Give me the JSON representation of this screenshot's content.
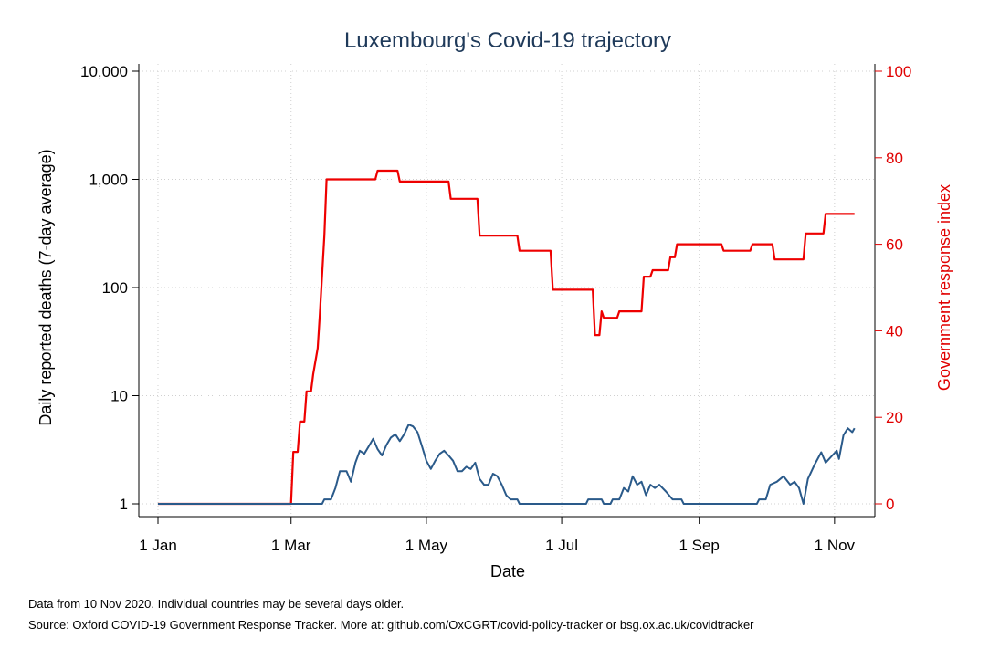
{
  "chart_data": {
    "type": "line",
    "title": "Luxembourg's Covid-19 trajectory",
    "xlabel": "Date",
    "ylabel_left": "Daily reported deaths (7-day average)",
    "ylabel_right": "Government response index",
    "x_ticks": [
      "1 Jan",
      "1 Mar",
      "1 May",
      "1 Jul",
      "1 Sep",
      "1 Nov"
    ],
    "y_left_ticks": [
      "1",
      "10",
      "100",
      "1,000",
      "10,000"
    ],
    "y_left_scale": "log",
    "y_left_range": [
      1,
      10000
    ],
    "y_right_ticks": [
      "0",
      "20",
      "40",
      "60",
      "80",
      "100"
    ],
    "y_right_range": [
      0,
      100
    ],
    "grid": true,
    "colors": {
      "deaths": "#2a5a8a",
      "index": "#ee0000",
      "title": "#1f3a5a"
    },
    "series": [
      {
        "axis": "right",
        "points": [
          [
            "2020-01-01",
            0
          ],
          [
            "2020-03-01",
            0
          ],
          [
            "2020-03-02",
            12
          ],
          [
            "2020-03-04",
            12
          ],
          [
            "2020-03-05",
            19
          ],
          [
            "2020-03-07",
            19
          ],
          [
            "2020-03-08",
            26
          ],
          [
            "2020-03-10",
            26
          ],
          [
            "2020-03-11",
            30
          ],
          [
            "2020-03-13",
            36
          ],
          [
            "2020-03-14",
            44
          ],
          [
            "2020-03-16",
            62
          ],
          [
            "2020-03-17",
            75
          ],
          [
            "2020-04-08",
            75
          ],
          [
            "2020-04-09",
            77
          ],
          [
            "2020-04-18",
            77
          ],
          [
            "2020-04-19",
            74.5
          ],
          [
            "2020-05-11",
            74.5
          ],
          [
            "2020-05-12",
            70.5
          ],
          [
            "2020-05-24",
            70.5
          ],
          [
            "2020-05-25",
            62
          ],
          [
            "2020-06-11",
            62
          ],
          [
            "2020-06-12",
            58.5
          ],
          [
            "2020-06-26",
            58.5
          ],
          [
            "2020-06-27",
            49.5
          ],
          [
            "2020-07-15",
            49.5
          ],
          [
            "2020-07-16",
            39
          ],
          [
            "2020-07-18",
            39
          ],
          [
            "2020-07-19",
            44.5
          ],
          [
            "2020-07-20",
            43
          ],
          [
            "2020-07-26",
            43
          ],
          [
            "2020-07-27",
            44.5
          ],
          [
            "2020-08-06",
            44.5
          ],
          [
            "2020-08-07",
            52.5
          ],
          [
            "2020-08-10",
            52.5
          ],
          [
            "2020-08-11",
            54
          ],
          [
            "2020-08-18",
            54
          ],
          [
            "2020-08-19",
            57
          ],
          [
            "2020-08-21",
            57
          ],
          [
            "2020-08-22",
            60
          ],
          [
            "2020-09-11",
            60
          ],
          [
            "2020-09-12",
            58.5
          ],
          [
            "2020-09-24",
            58.5
          ],
          [
            "2020-09-25",
            60
          ],
          [
            "2020-10-04",
            60
          ],
          [
            "2020-10-05",
            56.5
          ],
          [
            "2020-10-18",
            56.5
          ],
          [
            "2020-10-19",
            62.5
          ],
          [
            "2020-10-27",
            62.5
          ],
          [
            "2020-10-28",
            67
          ],
          [
            "2020-11-10",
            67
          ]
        ]
      },
      {
        "axis": "left",
        "points": [
          [
            "2020-01-01",
            1
          ],
          [
            "2020-03-15",
            1
          ],
          [
            "2020-03-16",
            1.1
          ],
          [
            "2020-03-19",
            1.1
          ],
          [
            "2020-03-21",
            1.4
          ],
          [
            "2020-03-23",
            2
          ],
          [
            "2020-03-26",
            2
          ],
          [
            "2020-03-28",
            1.6
          ],
          [
            "2020-03-30",
            2.4
          ],
          [
            "2020-04-01",
            3.1
          ],
          [
            "2020-04-03",
            2.9
          ],
          [
            "2020-04-05",
            3.4
          ],
          [
            "2020-04-07",
            4
          ],
          [
            "2020-04-09",
            3.2
          ],
          [
            "2020-04-11",
            2.8
          ],
          [
            "2020-04-13",
            3.5
          ],
          [
            "2020-04-15",
            4.1
          ],
          [
            "2020-04-17",
            4.4
          ],
          [
            "2020-04-19",
            3.8
          ],
          [
            "2020-04-21",
            4.4
          ],
          [
            "2020-04-23",
            5.4
          ],
          [
            "2020-04-25",
            5.2
          ],
          [
            "2020-04-27",
            4.6
          ],
          [
            "2020-04-29",
            3.4
          ],
          [
            "2020-05-01",
            2.5
          ],
          [
            "2020-05-03",
            2.1
          ],
          [
            "2020-05-05",
            2.5
          ],
          [
            "2020-05-07",
            2.9
          ],
          [
            "2020-05-09",
            3.1
          ],
          [
            "2020-05-11",
            2.8
          ],
          [
            "2020-05-13",
            2.5
          ],
          [
            "2020-05-15",
            2
          ],
          [
            "2020-05-17",
            2
          ],
          [
            "2020-05-19",
            2.2
          ],
          [
            "2020-05-21",
            2.1
          ],
          [
            "2020-05-23",
            2.4
          ],
          [
            "2020-05-25",
            1.7
          ],
          [
            "2020-05-27",
            1.5
          ],
          [
            "2020-05-29",
            1.5
          ],
          [
            "2020-05-31",
            1.9
          ],
          [
            "2020-06-02",
            1.8
          ],
          [
            "2020-06-04",
            1.5
          ],
          [
            "2020-06-06",
            1.2
          ],
          [
            "2020-06-08",
            1.1
          ],
          [
            "2020-06-11",
            1.1
          ],
          [
            "2020-06-12",
            1
          ],
          [
            "2020-07-12",
            1
          ],
          [
            "2020-07-13",
            1.1
          ],
          [
            "2020-07-19",
            1.1
          ],
          [
            "2020-07-20",
            1
          ],
          [
            "2020-07-23",
            1
          ],
          [
            "2020-07-24",
            1.1
          ],
          [
            "2020-07-27",
            1.1
          ],
          [
            "2020-07-29",
            1.4
          ],
          [
            "2020-07-31",
            1.3
          ],
          [
            "2020-08-02",
            1.8
          ],
          [
            "2020-08-04",
            1.5
          ],
          [
            "2020-08-06",
            1.6
          ],
          [
            "2020-08-08",
            1.2
          ],
          [
            "2020-08-10",
            1.5
          ],
          [
            "2020-08-12",
            1.4
          ],
          [
            "2020-08-14",
            1.5
          ],
          [
            "2020-08-17",
            1.3
          ],
          [
            "2020-08-20",
            1.1
          ],
          [
            "2020-08-24",
            1.1
          ],
          [
            "2020-08-25",
            1
          ],
          [
            "2020-09-27",
            1
          ],
          [
            "2020-09-28",
            1.1
          ],
          [
            "2020-10-01",
            1.1
          ],
          [
            "2020-10-03",
            1.5
          ],
          [
            "2020-10-06",
            1.6
          ],
          [
            "2020-10-09",
            1.8
          ],
          [
            "2020-10-12",
            1.5
          ],
          [
            "2020-10-14",
            1.6
          ],
          [
            "2020-10-16",
            1.4
          ],
          [
            "2020-10-18",
            1
          ],
          [
            "2020-10-20",
            1.7
          ],
          [
            "2020-10-23",
            2.3
          ],
          [
            "2020-10-26",
            3
          ],
          [
            "2020-10-28",
            2.4
          ],
          [
            "2020-10-31",
            2.8
          ],
          [
            "2020-11-02",
            3.1
          ],
          [
            "2020-11-03",
            2.6
          ],
          [
            "2020-11-05",
            4.3
          ],
          [
            "2020-11-07",
            5
          ],
          [
            "2020-11-09",
            4.6
          ],
          [
            "2020-11-10",
            5
          ]
        ]
      }
    ]
  },
  "notes": {
    "line1": "Data from 10 Nov 2020. Individual countries may be several days older.",
    "line2": "Source: Oxford COVID-19 Government Response Tracker. More at: github.com/OxCGRT/covid-policy-tracker or bsg.ox.ac.uk/covidtracker"
  }
}
